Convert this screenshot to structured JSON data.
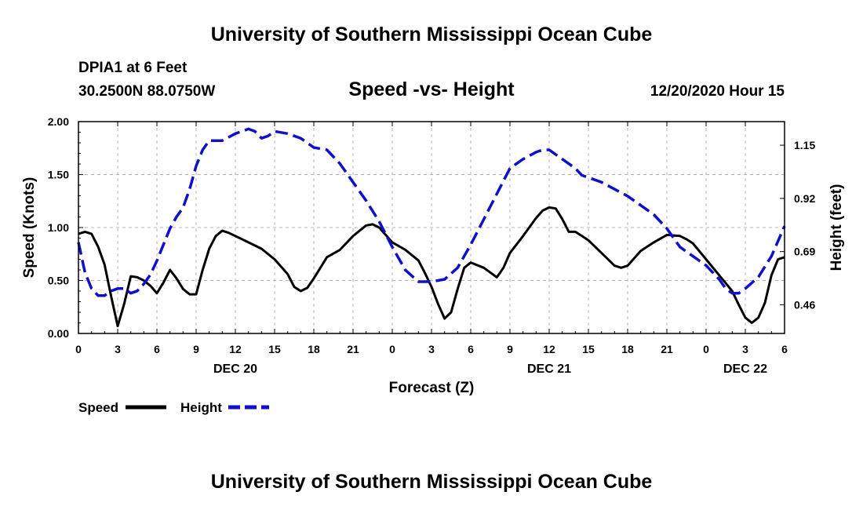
{
  "header": {
    "title": "University of Southern Mississippi Ocean Cube",
    "station": "DPIA1 at 6 Feet",
    "coordinates": "30.2500N 88.0750W",
    "subtitle": "Speed -vs- Height",
    "run_time": "12/20/2020 Hour 15"
  },
  "footer": {
    "title": "University of Southern Mississippi Ocean Cube"
  },
  "legend": {
    "speed_label": "Speed",
    "height_label": "Height"
  },
  "colors": {
    "speed": "#000000",
    "height": "#1010c8",
    "grid": "#b4b4b4",
    "axis": "#000000"
  },
  "chart_data": {
    "type": "line",
    "title": "Speed -vs- Height",
    "xlabel": "Forecast (Z)",
    "ylabel_left": "Speed (Knots)",
    "ylabel_right": "Height (feet)",
    "x_range_hours": [
      0,
      54
    ],
    "x_ticks": [
      {
        "hour": 0,
        "label": "0"
      },
      {
        "hour": 3,
        "label": "3"
      },
      {
        "hour": 6,
        "label": "6"
      },
      {
        "hour": 9,
        "label": "9"
      },
      {
        "hour": 12,
        "label": "12"
      },
      {
        "hour": 15,
        "label": "15"
      },
      {
        "hour": 18,
        "label": "18"
      },
      {
        "hour": 21,
        "label": "21"
      },
      {
        "hour": 24,
        "label": "0"
      },
      {
        "hour": 27,
        "label": "3"
      },
      {
        "hour": 30,
        "label": "6"
      },
      {
        "hour": 33,
        "label": "9"
      },
      {
        "hour": 36,
        "label": "12"
      },
      {
        "hour": 39,
        "label": "15"
      },
      {
        "hour": 42,
        "label": "18"
      },
      {
        "hour": 45,
        "label": "21"
      },
      {
        "hour": 48,
        "label": "0"
      },
      {
        "hour": 51,
        "label": "3"
      },
      {
        "hour": 54,
        "label": "6"
      }
    ],
    "date_labels": [
      {
        "hour": 12,
        "label": "DEC 20"
      },
      {
        "hour": 36,
        "label": "DEC 21"
      },
      {
        "hour": 51,
        "label": "DEC 22"
      }
    ],
    "y_left": {
      "range": [
        0,
        2.0
      ],
      "ticks": [
        "0.00",
        "0.50",
        "1.00",
        "1.50",
        "2.00"
      ]
    },
    "y_right": {
      "range": [
        0.336,
        1.252
      ],
      "ticks": [
        "0.46",
        "0.69",
        "0.92",
        "1.15"
      ]
    },
    "series": [
      {
        "name": "Speed",
        "axis": "left",
        "style": "solid",
        "points": [
          [
            0,
            0.94
          ],
          [
            0.5,
            0.96
          ],
          [
            1,
            0.94
          ],
          [
            1.5,
            0.82
          ],
          [
            2,
            0.65
          ],
          [
            2.5,
            0.35
          ],
          [
            3,
            0.07
          ],
          [
            3.5,
            0.28
          ],
          [
            4,
            0.54
          ],
          [
            4.5,
            0.53
          ],
          [
            5,
            0.5
          ],
          [
            5.5,
            0.45
          ],
          [
            6,
            0.38
          ],
          [
            6.5,
            0.48
          ],
          [
            7,
            0.6
          ],
          [
            7.5,
            0.52
          ],
          [
            8,
            0.42
          ],
          [
            8.5,
            0.37
          ],
          [
            9,
            0.37
          ],
          [
            9.5,
            0.6
          ],
          [
            10,
            0.8
          ],
          [
            10.5,
            0.92
          ],
          [
            11,
            0.97
          ],
          [
            11.5,
            0.95
          ],
          [
            12,
            0.92
          ],
          [
            13,
            0.86
          ],
          [
            14,
            0.8
          ],
          [
            15,
            0.7
          ],
          [
            16,
            0.56
          ],
          [
            16.5,
            0.44
          ],
          [
            17,
            0.4
          ],
          [
            17.5,
            0.43
          ],
          [
            18,
            0.52
          ],
          [
            19,
            0.72
          ],
          [
            20,
            0.79
          ],
          [
            21,
            0.92
          ],
          [
            22,
            1.02
          ],
          [
            22.5,
            1.03
          ],
          [
            23,
            1.0
          ],
          [
            24,
            0.86
          ],
          [
            25,
            0.79
          ],
          [
            26,
            0.69
          ],
          [
            26.5,
            0.57
          ],
          [
            27,
            0.44
          ],
          [
            27.5,
            0.28
          ],
          [
            28,
            0.14
          ],
          [
            28.5,
            0.2
          ],
          [
            29,
            0.42
          ],
          [
            29.5,
            0.62
          ],
          [
            30,
            0.67
          ],
          [
            31,
            0.62
          ],
          [
            32,
            0.53
          ],
          [
            32.5,
            0.62
          ],
          [
            33,
            0.76
          ],
          [
            34,
            0.92
          ],
          [
            35,
            1.09
          ],
          [
            35.5,
            1.16
          ],
          [
            36,
            1.19
          ],
          [
            36.5,
            1.18
          ],
          [
            37,
            1.08
          ],
          [
            37.5,
            0.96
          ],
          [
            38,
            0.96
          ],
          [
            38.5,
            0.92
          ],
          [
            39,
            0.88
          ],
          [
            40,
            0.76
          ],
          [
            41,
            0.64
          ],
          [
            41.5,
            0.62
          ],
          [
            42,
            0.64
          ],
          [
            43,
            0.78
          ],
          [
            44,
            0.86
          ],
          [
            45,
            0.93
          ],
          [
            46,
            0.92
          ],
          [
            46.5,
            0.89
          ],
          [
            47,
            0.85
          ],
          [
            48,
            0.7
          ],
          [
            49,
            0.55
          ],
          [
            50,
            0.4
          ],
          [
            50.5,
            0.27
          ],
          [
            51,
            0.15
          ],
          [
            51.5,
            0.1
          ],
          [
            52,
            0.15
          ],
          [
            52.5,
            0.29
          ],
          [
            53,
            0.55
          ],
          [
            53.5,
            0.7
          ],
          [
            54,
            0.72
          ]
        ]
      },
      {
        "name": "Height",
        "axis": "right",
        "style": "dashed",
        "points": [
          [
            0,
            0.73
          ],
          [
            0.5,
            0.6
          ],
          [
            1,
            0.53
          ],
          [
            1.5,
            0.5
          ],
          [
            2,
            0.5
          ],
          [
            2.5,
            0.52
          ],
          [
            3,
            0.53
          ],
          [
            3.5,
            0.53
          ],
          [
            4,
            0.51
          ],
          [
            4.5,
            0.52
          ],
          [
            5,
            0.55
          ],
          [
            5.5,
            0.59
          ],
          [
            6,
            0.65
          ],
          [
            6.5,
            0.72
          ],
          [
            7,
            0.79
          ],
          [
            7.5,
            0.84
          ],
          [
            8,
            0.88
          ],
          [
            8.5,
            0.96
          ],
          [
            9,
            1.06
          ],
          [
            9.5,
            1.13
          ],
          [
            10,
            1.17
          ],
          [
            10.5,
            1.17
          ],
          [
            11,
            1.17
          ],
          [
            12,
            1.2
          ],
          [
            13,
            1.22
          ],
          [
            13.5,
            1.21
          ],
          [
            14,
            1.18
          ],
          [
            14.5,
            1.19
          ],
          [
            15,
            1.21
          ],
          [
            16,
            1.2
          ],
          [
            17,
            1.18
          ],
          [
            18,
            1.14
          ],
          [
            19,
            1.13
          ],
          [
            20,
            1.07
          ],
          [
            21,
            0.99
          ],
          [
            22,
            0.91
          ],
          [
            23,
            0.82
          ],
          [
            24,
            0.71
          ],
          [
            25,
            0.61
          ],
          [
            26,
            0.56
          ],
          [
            27,
            0.56
          ],
          [
            28,
            0.57
          ],
          [
            29,
            0.62
          ],
          [
            30,
            0.72
          ],
          [
            31,
            0.83
          ],
          [
            32,
            0.94
          ],
          [
            33,
            1.05
          ],
          [
            34,
            1.09
          ],
          [
            35,
            1.12
          ],
          [
            35.5,
            1.13
          ],
          [
            36,
            1.13
          ],
          [
            37,
            1.09
          ],
          [
            38,
            1.05
          ],
          [
            38.5,
            1.02
          ],
          [
            39,
            1.01
          ],
          [
            40,
            0.99
          ],
          [
            41,
            0.96
          ],
          [
            42,
            0.93
          ],
          [
            43,
            0.89
          ],
          [
            44,
            0.85
          ],
          [
            45,
            0.79
          ],
          [
            46,
            0.71
          ],
          [
            47,
            0.67
          ],
          [
            48,
            0.63
          ],
          [
            49,
            0.57
          ],
          [
            49.5,
            0.53
          ],
          [
            50,
            0.51
          ],
          [
            50.5,
            0.51
          ],
          [
            51,
            0.53
          ],
          [
            52,
            0.58
          ],
          [
            53,
            0.67
          ],
          [
            54,
            0.8
          ]
        ]
      }
    ]
  }
}
